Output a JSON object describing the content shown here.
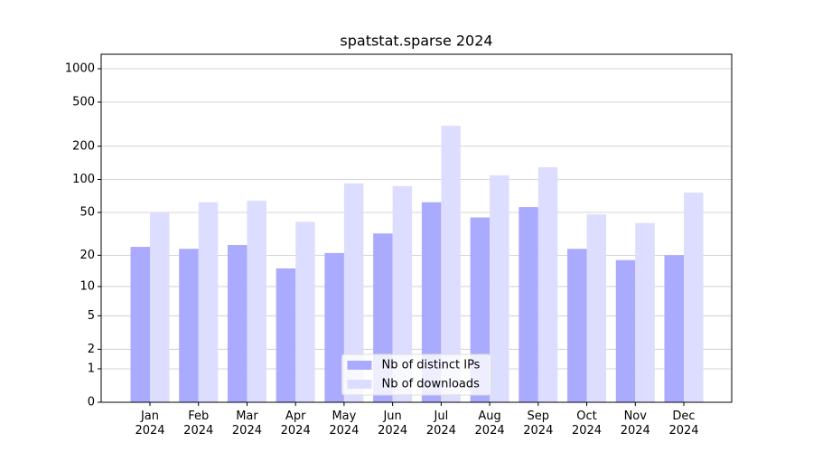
{
  "chart_data": {
    "type": "bar",
    "title": "spatstat.sparse 2024",
    "categories": [
      "Jan\n2024",
      "Feb\n2024",
      "Mar\n2024",
      "Apr\n2024",
      "May\n2024",
      "Jun\n2024",
      "Jul\n2024",
      "Aug\n2024",
      "Sep\n2024",
      "Oct\n2024",
      "Nov\n2024",
      "Dec\n2024"
    ],
    "series": [
      {
        "name": "Nb of distinct IPs",
        "color": "#aaaaff",
        "values": [
          24,
          23,
          25,
          15,
          21,
          32,
          62,
          45,
          56,
          23,
          18,
          20
        ]
      },
      {
        "name": "Nb of downloads",
        "color": "#ddddff",
        "values": [
          50,
          62,
          64,
          41,
          92,
          87,
          306,
          109,
          129,
          48,
          40,
          76
        ]
      }
    ],
    "yscale": "log1p",
    "ylim": [
      0,
      1350
    ],
    "yticks": [
      0,
      1,
      2,
      5,
      10,
      20,
      50,
      100,
      200,
      500,
      1000
    ],
    "grid": true,
    "legend": "lower center"
  }
}
